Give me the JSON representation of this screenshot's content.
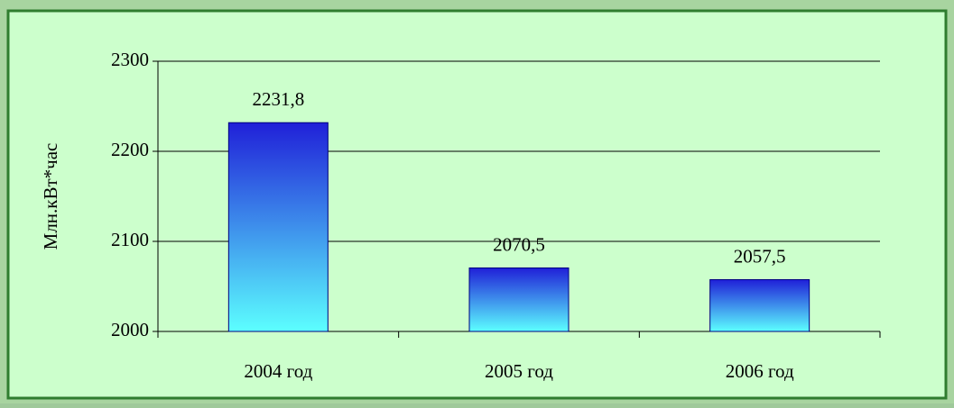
{
  "chart_data": {
    "type": "bar",
    "y_label": "Млн.кВт*час",
    "categories": [
      "2004 год",
      "2005 год",
      "2006 год"
    ],
    "values": [
      2231.8,
      2070.5,
      2057.5
    ],
    "value_labels": [
      "2231,8",
      "2070,5",
      "2057,5"
    ],
    "ylim": [
      2000,
      2300
    ],
    "yticks": [
      2000,
      2100,
      2200,
      2300
    ],
    "grid": true
  }
}
